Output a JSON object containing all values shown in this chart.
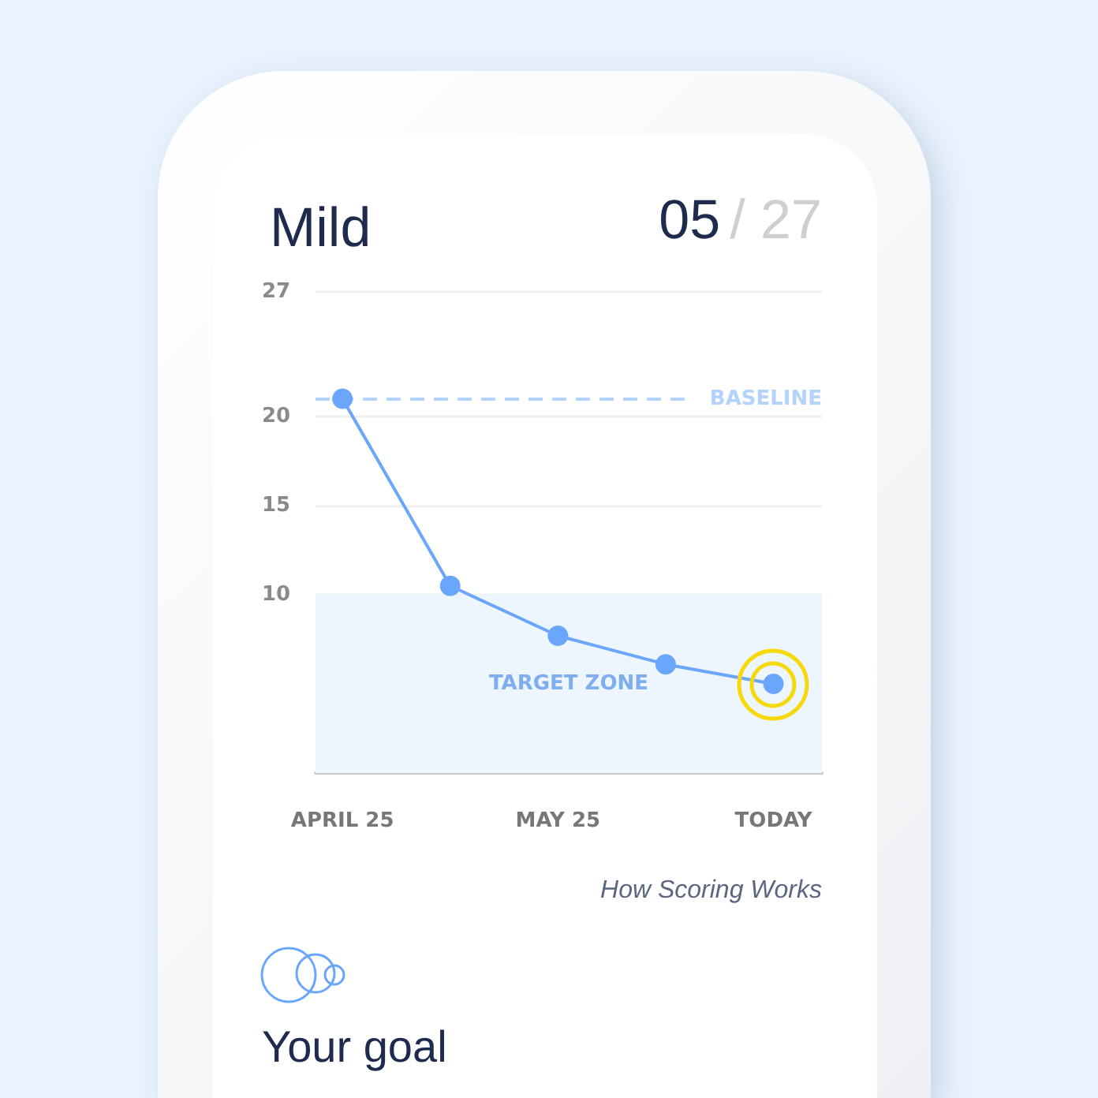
{
  "chart_data": {
    "type": "line",
    "title": "Mild",
    "annotations": [
      "05",
      "/ 27",
      "How Scoring Works",
      "Your goal"
    ],
    "categories": [
      "APRIL 25",
      null,
      "MAY 25",
      null,
      "TODAY"
    ],
    "series": [
      {
        "color": "#6aa6fb",
        "values": [
          21,
          10.5,
          7.7,
          6.1,
          5
        ]
      }
    ],
    "ylim": [
      0,
      27
    ],
    "yticks": [
      10,
      15,
      20,
      27
    ],
    "grid": "y",
    "marker": "circle",
    "line_style": "solid",
    "ref_lines": [
      {
        "axis": "y",
        "value": 21,
        "label": "BASELINE",
        "color": "#b3d3fd",
        "line_style": "dashed"
      }
    ],
    "bands": [
      {
        "axis": "y",
        "from": 0,
        "to": 10,
        "label": "TARGET ZONE",
        "color": "#edf5fe"
      }
    ]
  }
}
